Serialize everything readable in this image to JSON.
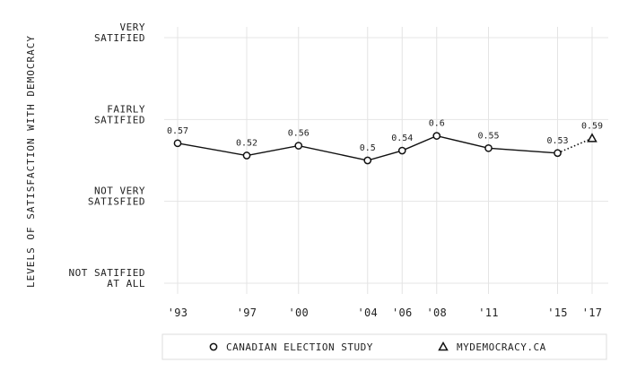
{
  "chart_data": {
    "type": "line",
    "title": "",
    "xlabel": "",
    "ylabel": "LEVELS OF SATISFACTION WITH DEMOCRACY",
    "x_tick_labels": [
      "'93",
      "'97",
      "'00",
      "'04",
      "'06",
      "'08",
      "'11",
      "'15",
      "'17"
    ],
    "x_years": [
      1993,
      1997,
      2000,
      2004,
      2006,
      2008,
      2011,
      2015,
      2017
    ],
    "xlim": [
      1993,
      2017
    ],
    "y_ticks": [
      {
        "value": 0,
        "lines": [
          "NOT SATIFIED",
          "AT ALL"
        ]
      },
      {
        "value": 0.3333,
        "lines": [
          "NOT VERY",
          "SATISFIED"
        ]
      },
      {
        "value": 0.6667,
        "lines": [
          "FAIRLY",
          "SATIFIED"
        ]
      },
      {
        "value": 1,
        "lines": [
          "VERY",
          "SATIFIED"
        ]
      }
    ],
    "ylim": [
      0,
      1
    ],
    "grid": true,
    "legend_position": "bottom",
    "series": [
      {
        "name": "CANADIAN ELECTION STUDY",
        "marker": "circle",
        "line_style": "solid",
        "x": [
          1993,
          1997,
          2000,
          2004,
          2006,
          2008,
          2011,
          2015
        ],
        "values": [
          0.57,
          0.52,
          0.56,
          0.5,
          0.54,
          0.6,
          0.55,
          0.53
        ],
        "labels": [
          "0.57",
          "0.52",
          "0.56",
          "0.5",
          "0.54",
          "0.6",
          "0.55",
          "0.53"
        ]
      },
      {
        "name": "MYDEMOCRACY.CA",
        "marker": "triangle",
        "line_style": "dotted",
        "x": [
          2017
        ],
        "values": [
          0.59
        ],
        "labels": [
          "0.59"
        ]
      }
    ],
    "colors": {
      "line": "#111111",
      "marker_fill": "#ffffff",
      "grid": "#e4e4e4",
      "legend_border": "#dddddd"
    }
  }
}
